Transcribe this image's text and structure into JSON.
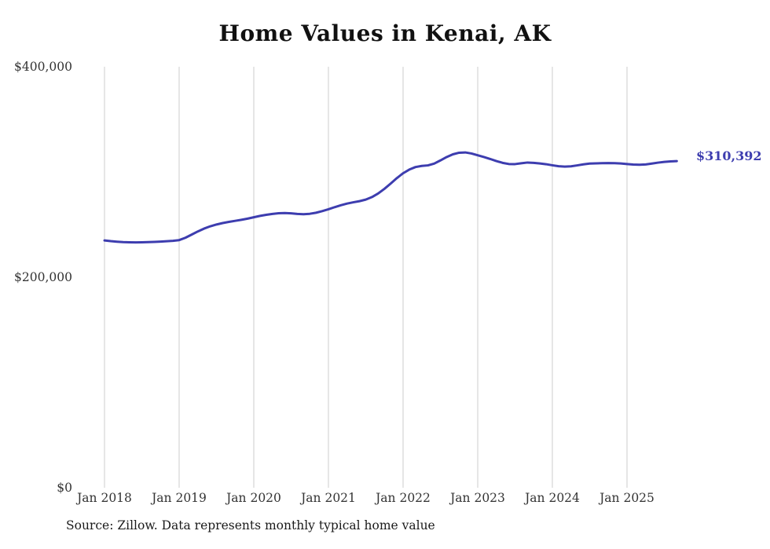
{
  "title": "Home Values in Kenai, AK",
  "source": "Source: Zillow. Data represents monthly typical home value",
  "end_label": "$310,392",
  "colors": {
    "line": "#3d3daf",
    "grid": "#cccccc",
    "axis_text": "#333333",
    "background": "#ffffff"
  },
  "chart_data": {
    "type": "line",
    "title": "Home Values in Kenai, AK",
    "x_start": "Jan 2018",
    "x_end": "Sep 2025",
    "frequency": "monthly",
    "xticks": [
      "Jan 2018",
      "Jan 2019",
      "Jan 2020",
      "Jan 2021",
      "Jan 2022",
      "Jan 2023",
      "Jan 2024",
      "Jan 2025"
    ],
    "yticks": [
      {
        "label": "$0",
        "value": 0
      },
      {
        "label": "$200,000",
        "value": 200000
      },
      {
        "label": "$400,000",
        "value": 400000
      }
    ],
    "ylim": [
      0,
      400000
    ],
    "grid": "vertical",
    "legend": "none",
    "end_value": 310392,
    "series": [
      {
        "name": "Monthly typical home value",
        "values": [
          235000,
          234300,
          233800,
          233400,
          233200,
          233100,
          233200,
          233400,
          233600,
          233900,
          234200,
          234600,
          235300,
          237500,
          240500,
          243500,
          246200,
          248400,
          250100,
          251500,
          252600,
          253600,
          254600,
          255700,
          257000,
          258300,
          259300,
          260200,
          260800,
          261000,
          260700,
          260200,
          259900,
          260300,
          261300,
          262800,
          264600,
          266600,
          268400,
          270000,
          271200,
          272300,
          273800,
          276200,
          279600,
          284000,
          289000,
          294200,
          298800,
          302300,
          304700,
          305800,
          306300,
          308000,
          311000,
          314200,
          316800,
          318300,
          318600,
          317600,
          315900,
          314200,
          312400,
          310400,
          308700,
          307600,
          307500,
          308300,
          309000,
          308700,
          308100,
          307400,
          306400,
          305500,
          305100,
          305400,
          306300,
          307300,
          308000,
          308200,
          308400,
          308500,
          308400,
          308100,
          307600,
          307100,
          306900,
          307200,
          308000,
          308900,
          309600,
          310100,
          310392
        ]
      }
    ]
  }
}
